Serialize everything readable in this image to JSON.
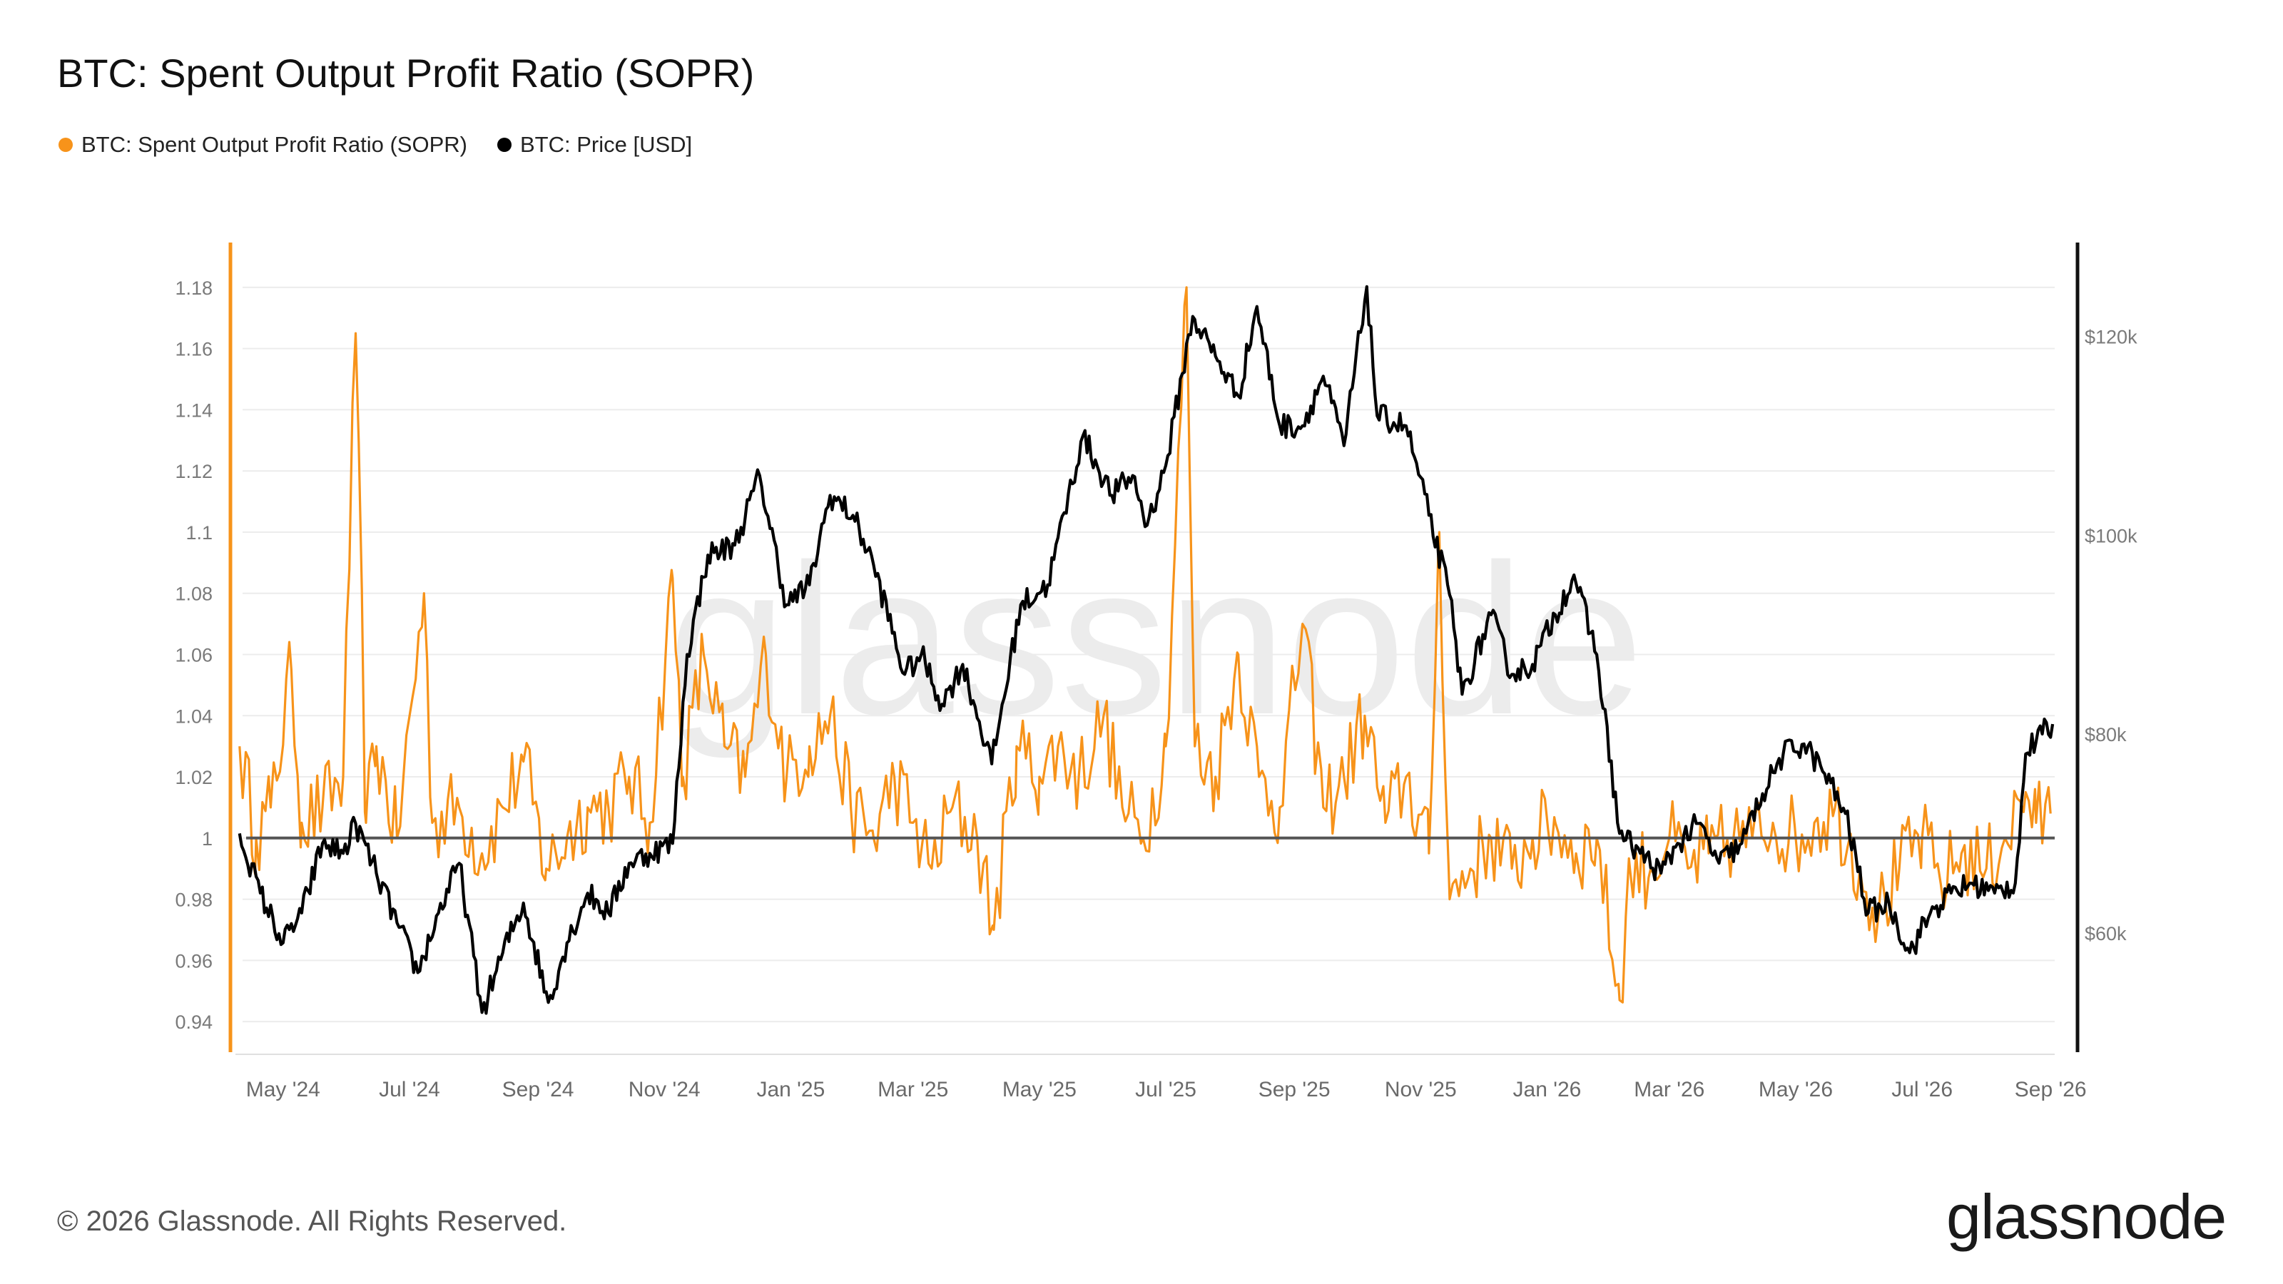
{
  "title": "BTC: Spent Output Profit Ratio (SOPR)",
  "legend": [
    {
      "label": "BTC: Spent Output Profit Ratio (SOPR)",
      "color": "#f7931a"
    },
    {
      "label": "BTC: Price [USD]",
      "color": "#000000"
    }
  ],
  "watermark": "glassnode",
  "footer": {
    "copyright": "© 2026 Glassnode. All Rights Reserved.",
    "logo": "glassnode"
  },
  "chart_data": {
    "type": "line",
    "grid": true,
    "legend_position": "top-left",
    "x_range": [
      "2024-04-08",
      "2026-09-03"
    ],
    "x_ticks": [
      "May '24",
      "Jul '24",
      "Sep '24",
      "Nov '24",
      "Jan '25",
      "Mar '25",
      "May '25",
      "Jul '25",
      "Sep '25",
      "Nov '25",
      "Jan '26",
      "Mar '26",
      "May '26",
      "Jul '26",
      "Sep '26"
    ],
    "y_left": {
      "ylim": [
        0.93,
        1.19
      ],
      "ticks": [
        "1.18",
        "1.16",
        "1.14",
        "1.12",
        "1.1",
        "1.08",
        "1.06",
        "1.04",
        "1.02",
        "1",
        "0.98",
        "0.96",
        "0.94"
      ],
      "reference_line": 1
    },
    "y_right": {
      "ylim": [
        48000,
        128000
      ],
      "ticks": [
        "$120k",
        "$100k",
        "$80k",
        "$60k"
      ]
    },
    "series": [
      {
        "name": "BTC: Spent Output Profit Ratio (SOPR)",
        "axis": "left",
        "color": "#f7931a",
        "points": [
          [
            "2024-04-10",
            1.03
          ],
          [
            "2024-04-18",
            1.0
          ],
          [
            "2024-04-25",
            1.01
          ],
          [
            "2024-05-05",
            1.055
          ],
          [
            "2024-05-10",
            1.005
          ],
          [
            "2024-05-20",
            1.01
          ],
          [
            "2024-05-30",
            1.02
          ],
          [
            "2024-06-05",
            1.165
          ],
          [
            "2024-06-10",
            1.005
          ],
          [
            "2024-06-15",
            1.03
          ],
          [
            "2024-06-25",
            1.0
          ],
          [
            "2024-07-08",
            1.08
          ],
          [
            "2024-07-12",
            1.005
          ],
          [
            "2024-07-25",
            1.01
          ],
          [
            "2024-08-05",
            0.995
          ],
          [
            "2024-08-15",
            1.01
          ],
          [
            "2024-08-25",
            1.025
          ],
          [
            "2024-09-05",
            0.99
          ],
          [
            "2024-09-15",
            1.0
          ],
          [
            "2024-09-25",
            1.01
          ],
          [
            "2024-10-05",
            1.01
          ],
          [
            "2024-10-15",
            1.02
          ],
          [
            "2024-10-25",
            1.005
          ],
          [
            "2024-11-05",
            1.085
          ],
          [
            "2024-11-10",
            1.02
          ],
          [
            "2024-11-20",
            1.06
          ],
          [
            "2024-11-30",
            1.03
          ],
          [
            "2024-12-10",
            1.02
          ],
          [
            "2024-12-20",
            1.06
          ],
          [
            "2024-12-30",
            1.02
          ],
          [
            "2025-01-10",
            1.03
          ],
          [
            "2025-01-20",
            1.04
          ],
          [
            "2025-01-30",
            1.01
          ],
          [
            "2025-02-10",
            1.0
          ],
          [
            "2025-02-20",
            1.02
          ],
          [
            "2025-03-01",
            1.005
          ],
          [
            "2025-03-10",
            0.99
          ],
          [
            "2025-03-20",
            1.01
          ],
          [
            "2025-04-01",
            1.0
          ],
          [
            "2025-04-09",
            0.97
          ],
          [
            "2025-04-20",
            1.03
          ],
          [
            "2025-05-01",
            1.02
          ],
          [
            "2025-05-10",
            1.03
          ],
          [
            "2025-05-20",
            1.02
          ],
          [
            "2025-06-01",
            1.04
          ],
          [
            "2025-06-10",
            1.01
          ],
          [
            "2025-06-20",
            1.0
          ],
          [
            "2025-07-01",
            1.03
          ],
          [
            "2025-07-11",
            1.18
          ],
          [
            "2025-07-15",
            1.03
          ],
          [
            "2025-07-25",
            1.02
          ],
          [
            "2025-08-05",
            1.06
          ],
          [
            "2025-08-15",
            1.02
          ],
          [
            "2025-08-25",
            1.01
          ],
          [
            "2025-09-05",
            1.07
          ],
          [
            "2025-09-15",
            1.01
          ],
          [
            "2025-09-25",
            1.02
          ],
          [
            "2025-10-05",
            1.04
          ],
          [
            "2025-10-15",
            1.005
          ],
          [
            "2025-10-25",
            1.02
          ],
          [
            "2025-11-05",
            0.995
          ],
          [
            "2025-11-10",
            1.1
          ],
          [
            "2025-11-15",
            0.98
          ],
          [
            "2025-11-25",
            0.99
          ],
          [
            "2025-12-05",
            1.0
          ],
          [
            "2025-12-15",
            0.99
          ],
          [
            "2025-12-25",
            1.0
          ],
          [
            "2026-01-05",
            1.005
          ],
          [
            "2026-01-15",
            0.995
          ],
          [
            "2026-01-25",
            1.0
          ],
          [
            "2026-02-05",
            0.947
          ],
          [
            "2026-02-10",
            0.99
          ],
          [
            "2026-02-20",
            0.99
          ],
          [
            "2026-03-01",
            1.0
          ],
          [
            "2026-03-10",
            0.99
          ],
          [
            "2026-03-20",
            0.995
          ],
          [
            "2026-04-01",
            1.0
          ],
          [
            "2026-04-10",
            1.0
          ],
          [
            "2026-04-20",
            1.005
          ],
          [
            "2026-05-01",
            1.0
          ],
          [
            "2026-05-10",
            1.005
          ],
          [
            "2026-05-20",
            1.01
          ],
          [
            "2026-06-01",
            0.99
          ],
          [
            "2026-06-10",
            0.975
          ],
          [
            "2026-06-20",
            0.99
          ],
          [
            "2026-07-01",
            1.0
          ],
          [
            "2026-07-10",
            0.985
          ],
          [
            "2026-07-20",
            0.995
          ],
          [
            "2026-08-01",
            0.99
          ],
          [
            "2026-08-10",
            1.0
          ],
          [
            "2026-08-20",
            1.015
          ],
          [
            "2026-08-25",
            1.005
          ],
          [
            "2026-09-01",
            1.008
          ]
        ]
      },
      {
        "name": "BTC: Price [USD]",
        "axis": "right",
        "color": "#000000",
        "points": [
          [
            "2024-04-10",
            70000
          ],
          [
            "2024-04-20",
            64000
          ],
          [
            "2024-05-01",
            59000
          ],
          [
            "2024-05-10",
            62000
          ],
          [
            "2024-05-20",
            69000
          ],
          [
            "2024-05-30",
            68000
          ],
          [
            "2024-06-05",
            71000
          ],
          [
            "2024-06-15",
            66000
          ],
          [
            "2024-06-25",
            61000
          ],
          [
            "2024-07-05",
            56000
          ],
          [
            "2024-07-15",
            62000
          ],
          [
            "2024-07-25",
            67000
          ],
          [
            "2024-08-05",
            52000
          ],
          [
            "2024-08-15",
            58000
          ],
          [
            "2024-08-25",
            63000
          ],
          [
            "2024-09-06",
            53000
          ],
          [
            "2024-09-15",
            59000
          ],
          [
            "2024-09-25",
            64000
          ],
          [
            "2024-10-05",
            62000
          ],
          [
            "2024-10-15",
            67000
          ],
          [
            "2024-10-25",
            68000
          ],
          [
            "2024-11-05",
            69000
          ],
          [
            "2024-11-12",
            88000
          ],
          [
            "2024-11-22",
            98000
          ],
          [
            "2024-12-05",
            99000
          ],
          [
            "2024-12-17",
            106000
          ],
          [
            "2024-12-30",
            93000
          ],
          [
            "2025-01-10",
            95000
          ],
          [
            "2025-01-20",
            104000
          ],
          [
            "2025-01-31",
            102000
          ],
          [
            "2025-02-10",
            97000
          ],
          [
            "2025-02-25",
            86000
          ],
          [
            "2025-03-05",
            88000
          ],
          [
            "2025-03-15",
            83000
          ],
          [
            "2025-03-25",
            87000
          ],
          [
            "2025-04-08",
            77000
          ],
          [
            "2025-04-22",
            93000
          ],
          [
            "2025-05-05",
            95000
          ],
          [
            "2025-05-22",
            110000
          ],
          [
            "2025-06-05",
            104000
          ],
          [
            "2025-06-15",
            106000
          ],
          [
            "2025-06-22",
            101000
          ],
          [
            "2025-07-01",
            107000
          ],
          [
            "2025-07-14",
            122000
          ],
          [
            "2025-07-25",
            118000
          ],
          [
            "2025-08-05",
            114000
          ],
          [
            "2025-08-14",
            123000
          ],
          [
            "2025-08-25",
            111000
          ],
          [
            "2025-09-05",
            111000
          ],
          [
            "2025-09-15",
            116000
          ],
          [
            "2025-09-25",
            109000
          ],
          [
            "2025-10-06",
            125000
          ],
          [
            "2025-10-11",
            112000
          ],
          [
            "2025-10-25",
            111000
          ],
          [
            "2025-11-05",
            102000
          ],
          [
            "2025-11-15",
            94000
          ],
          [
            "2025-11-21",
            84000
          ],
          [
            "2025-12-05",
            92000
          ],
          [
            "2025-12-15",
            86000
          ],
          [
            "2025-12-25",
            87000
          ],
          [
            "2026-01-05",
            92000
          ],
          [
            "2026-01-14",
            96000
          ],
          [
            "2026-01-25",
            88000
          ],
          [
            "2026-02-05",
            70000
          ],
          [
            "2026-02-15",
            68000
          ],
          [
            "2026-02-25",
            66000
          ],
          [
            "2026-03-05",
            69000
          ],
          [
            "2026-03-15",
            71000
          ],
          [
            "2026-03-25",
            67000
          ],
          [
            "2026-04-05",
            69000
          ],
          [
            "2026-04-15",
            74000
          ],
          [
            "2026-04-25",
            78000
          ],
          [
            "2026-05-05",
            79000
          ],
          [
            "2026-05-15",
            76000
          ],
          [
            "2026-05-25",
            72000
          ],
          [
            "2026-06-05",
            62000
          ],
          [
            "2026-06-15",
            63000
          ],
          [
            "2026-06-25",
            58000
          ],
          [
            "2026-07-05",
            62000
          ],
          [
            "2026-07-15",
            64000
          ],
          [
            "2026-07-25",
            65000
          ],
          [
            "2026-08-05",
            64000
          ],
          [
            "2026-08-15",
            65000
          ],
          [
            "2026-08-20",
            78000
          ],
          [
            "2026-08-28",
            80000
          ],
          [
            "2026-09-02",
            81000
          ]
        ]
      }
    ]
  }
}
